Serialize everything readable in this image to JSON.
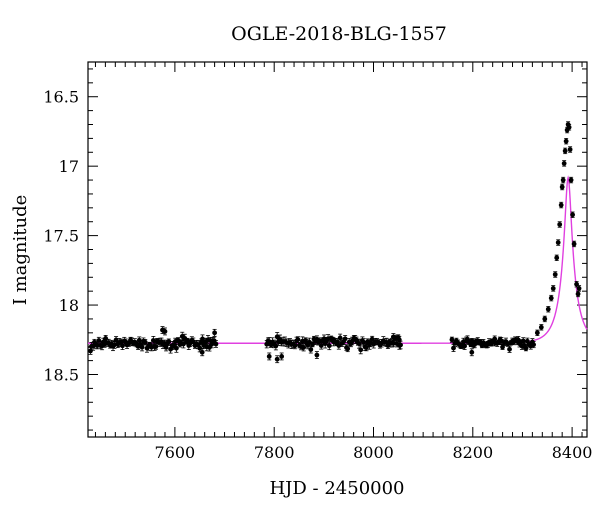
{
  "chart_data": {
    "type": "scatter",
    "title": "OGLE-2018-BLG-1557",
    "xlabel": "HJD - 2450000",
    "ylabel": "I magnitude",
    "xlim": [
      7425,
      8430
    ],
    "ylim": [
      18.95,
      16.25
    ],
    "y_inverted": true,
    "x_major_ticks": [
      7600,
      7800,
      8000,
      8200,
      8400
    ],
    "x_minor_step": 20,
    "y_major_ticks": [
      16.5,
      17,
      17.5,
      18,
      18.5
    ],
    "y_minor_step": 0.1,
    "grid": false,
    "colors": {
      "points": "#000000",
      "model": "#e040e0",
      "axes": "#000000"
    },
    "model": {
      "name": "",
      "baseline_mag": 18.275,
      "t0": 8392,
      "u0": 0.2,
      "tE": 30,
      "blend_fraction": 0.49
    },
    "observing_seasons": [
      {
        "start": 7432,
        "end": 7685,
        "mean_mag": 18.275,
        "scatter": 0.03,
        "err": 0.025
      },
      {
        "start": 7785,
        "end": 8055,
        "mean_mag": 18.27,
        "scatter": 0.03,
        "err": 0.025
      },
      {
        "start": 8158,
        "end": 8325,
        "mean_mag": 18.275,
        "scatter": 0.025,
        "err": 0.02
      }
    ],
    "peak_points": [
      {
        "x": 8330,
        "y": 18.2
      },
      {
        "x": 8338,
        "y": 18.16
      },
      {
        "x": 8345,
        "y": 18.1
      },
      {
        "x": 8352,
        "y": 18.03
      },
      {
        "x": 8358,
        "y": 17.95
      },
      {
        "x": 8362,
        "y": 17.88
      },
      {
        "x": 8366,
        "y": 17.78
      },
      {
        "x": 8369,
        "y": 17.66
      },
      {
        "x": 8372,
        "y": 17.55
      },
      {
        "x": 8375,
        "y": 17.42
      },
      {
        "x": 8378,
        "y": 17.28
      },
      {
        "x": 8380,
        "y": 17.15
      },
      {
        "x": 8382,
        "y": 17.1
      },
      {
        "x": 8384,
        "y": 16.98
      },
      {
        "x": 8386,
        "y": 16.89
      },
      {
        "x": 8388,
        "y": 16.82
      },
      {
        "x": 8390,
        "y": 16.74
      },
      {
        "x": 8392,
        "y": 16.7
      },
      {
        "x": 8394,
        "y": 16.72
      },
      {
        "x": 8396,
        "y": 16.88
      },
      {
        "x": 8398,
        "y": 17.1
      },
      {
        "x": 8401,
        "y": 17.35
      },
      {
        "x": 8404,
        "y": 17.56
      },
      {
        "x": 8409,
        "y": 17.85
      },
      {
        "x": 8412,
        "y": 17.92
      },
      {
        "x": 8414,
        "y": 17.88
      }
    ],
    "outliers": [
      {
        "x": 7430,
        "y": 18.33
      },
      {
        "x": 7575,
        "y": 18.18
      },
      {
        "x": 7580,
        "y": 18.19
      },
      {
        "x": 7655,
        "y": 18.34
      },
      {
        "x": 7680,
        "y": 18.2
      },
      {
        "x": 7790,
        "y": 18.37
      },
      {
        "x": 7806,
        "y": 18.39
      },
      {
        "x": 7815,
        "y": 18.37
      },
      {
        "x": 7886,
        "y": 18.36
      },
      {
        "x": 8040,
        "y": 18.23
      },
      {
        "x": 8052,
        "y": 18.25
      },
      {
        "x": 8198,
        "y": 18.34
      }
    ]
  }
}
